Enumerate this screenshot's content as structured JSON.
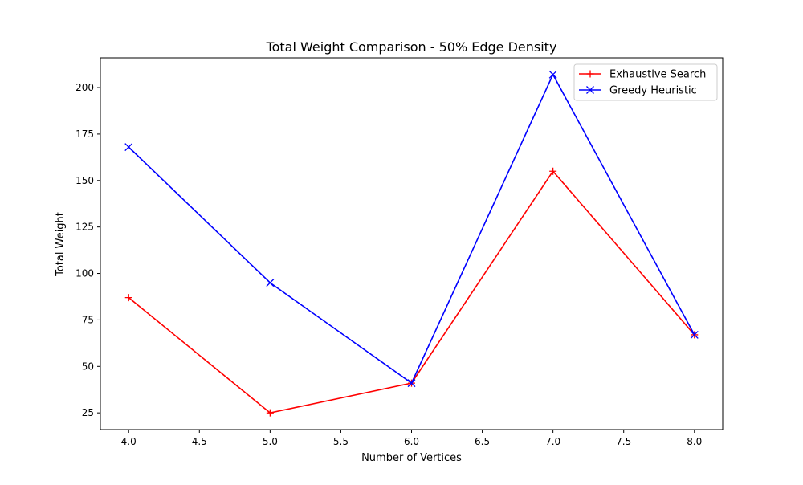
{
  "chart_data": {
    "type": "line",
    "title": "Total Weight Comparison - 50% Edge Density",
    "xlabel": "Number of Vertices",
    "ylabel": "Total Weight",
    "x": [
      4,
      5,
      6,
      7,
      8
    ],
    "xlim": [
      3.8,
      8.2
    ],
    "ylim": [
      16,
      216
    ],
    "xticks": [
      4.0,
      4.5,
      5.0,
      5.5,
      6.0,
      6.5,
      7.0,
      7.5,
      8.0
    ],
    "xtick_labels": [
      "4.0",
      "4.5",
      "5.0",
      "5.5",
      "6.0",
      "6.5",
      "7.0",
      "7.5",
      "8.0"
    ],
    "yticks": [
      25,
      50,
      75,
      100,
      125,
      150,
      175,
      200
    ],
    "ytick_labels": [
      "25",
      "50",
      "75",
      "100",
      "125",
      "150",
      "175",
      "200"
    ],
    "grid": false,
    "legend_position": "top-right",
    "series": [
      {
        "name": "Exhaustive Search",
        "color": "#ff0000",
        "marker": "plus",
        "values": [
          87,
          25,
          41,
          155,
          67
        ]
      },
      {
        "name": "Greedy Heuristic",
        "color": "#0000ff",
        "marker": "x",
        "values": [
          168,
          95,
          41,
          207,
          67
        ]
      }
    ]
  }
}
